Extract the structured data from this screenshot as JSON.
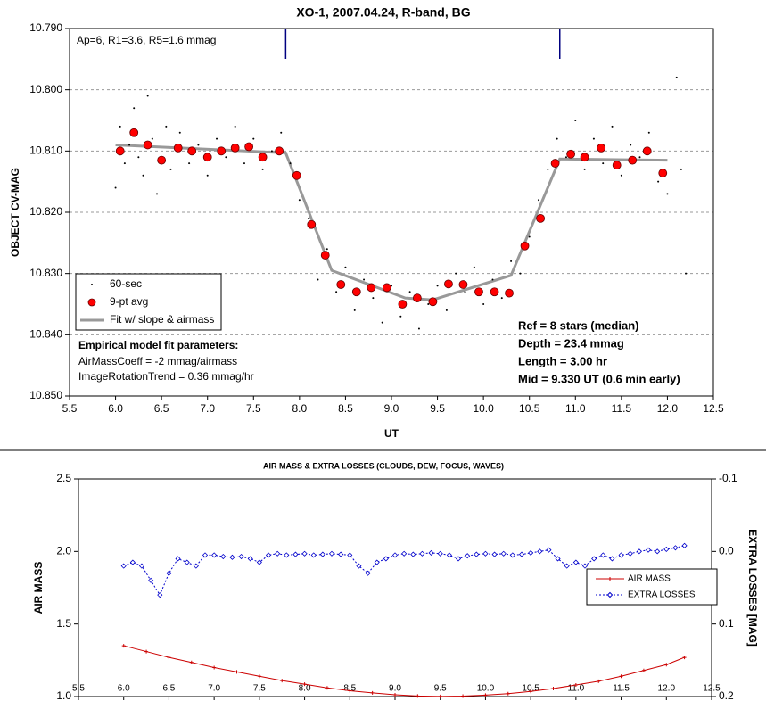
{
  "chart_data": [
    {
      "type": "scatter",
      "title": "XO-1, 2007.04.24, R-band, BG",
      "xlabel": "UT",
      "ylabel": "OBJECT CV-MAG",
      "xlim": [
        5.5,
        12.5
      ],
      "ylim": [
        10.85,
        10.79
      ],
      "y_inverted": true,
      "xticks": [
        5.5,
        {
          "value": 6,
          "label": "6.0"
        },
        6.5,
        {
          "value": 7,
          "label": "7.0"
        },
        7.5,
        {
          "value": 8,
          "label": "8.0"
        },
        8.5,
        {
          "value": 9,
          "label": "9.0"
        },
        9.5,
        {
          "value": 10,
          "label": "10.0"
        },
        10.5,
        {
          "value": 11,
          "label": "11.0"
        },
        11.5,
        {
          "value": 12,
          "label": "12.0"
        },
        12.5
      ],
      "yticks": [
        {
          "value": 10.79,
          "label": "10.790"
        },
        {
          "value": 10.8,
          "label": "10.800"
        },
        {
          "value": 10.81,
          "label": "10.810"
        },
        {
          "value": 10.82,
          "label": "10.820"
        },
        {
          "value": 10.83,
          "label": "10.830"
        },
        {
          "value": 10.84,
          "label": "10.840"
        },
        {
          "value": 10.85,
          "label": "10.850"
        }
      ],
      "grid": true,
      "legend": "lower left",
      "vlines": [
        7.85,
        10.83
      ],
      "vline_color": "#000080",
      "annotations": [
        "Ap=6, R1=3.6, R5=1.6 mmag"
      ],
      "params_title": "Empirical model fit parameters:",
      "params": [
        "AirMassCoeff = -2 mmag/airmass",
        "ImageRotationTrend = 0.36 mmag/hr"
      ],
      "results": [
        "Ref = 8 stars (median)",
        "Depth = 23.4 mmag",
        "Length = 3.00 hr",
        "Mid = 9.330 UT (0.6 min early)"
      ],
      "series": [
        {
          "name": "60-sec",
          "kind": "dot",
          "color": "#000000",
          "x": [
            6.0,
            6.05,
            6.1,
            6.15,
            6.2,
            6.25,
            6.3,
            6.35,
            6.4,
            6.45,
            6.5,
            6.55,
            6.6,
            6.7,
            6.8,
            6.9,
            7.0,
            7.1,
            7.2,
            7.3,
            7.4,
            7.5,
            7.6,
            7.7,
            7.8,
            7.9,
            8.0,
            8.1,
            8.2,
            8.3,
            8.4,
            8.5,
            8.6,
            8.7,
            8.8,
            8.9,
            9.0,
            9.1,
            9.2,
            9.3,
            9.4,
            9.5,
            9.6,
            9.7,
            9.8,
            9.9,
            10.0,
            10.1,
            10.2,
            10.3,
            10.4,
            10.5,
            10.6,
            10.7,
            10.8,
            10.9,
            11.0,
            11.1,
            11.2,
            11.3,
            11.4,
            11.5,
            11.6,
            11.7,
            11.8,
            11.9,
            12.0,
            12.1,
            12.15,
            12.2
          ],
          "values": [
            10.816,
            10.806,
            10.812,
            10.809,
            10.803,
            10.811,
            10.814,
            10.801,
            10.808,
            10.817,
            10.812,
            10.806,
            10.813,
            10.807,
            10.812,
            10.809,
            10.814,
            10.808,
            10.811,
            10.806,
            10.812,
            10.808,
            10.813,
            10.81,
            10.807,
            10.812,
            10.818,
            10.821,
            10.831,
            10.826,
            10.833,
            10.829,
            10.836,
            10.831,
            10.834,
            10.838,
            10.832,
            10.837,
            10.833,
            10.839,
            10.835,
            10.832,
            10.836,
            10.83,
            10.833,
            10.829,
            10.835,
            10.831,
            10.834,
            10.828,
            10.83,
            10.824,
            10.818,
            10.813,
            10.808,
            10.811,
            10.805,
            10.813,
            10.808,
            10.812,
            10.806,
            10.814,
            10.809,
            10.811,
            10.807,
            10.815,
            10.817,
            10.798,
            10.813,
            10.83
          ]
        },
        {
          "name": "9-pt avg",
          "kind": "circle",
          "color": "#ff0000",
          "x": [
            6.05,
            6.2,
            6.35,
            6.5,
            6.68,
            6.83,
            7.0,
            7.15,
            7.3,
            7.45,
            7.6,
            7.78,
            7.97,
            8.13,
            8.28,
            8.45,
            8.62,
            8.78,
            8.95,
            9.12,
            9.28,
            9.45,
            9.62,
            9.78,
            9.95,
            10.12,
            10.28,
            10.45,
            10.62,
            10.78,
            10.95,
            11.1,
            11.28,
            11.45,
            11.62,
            11.78,
            11.95
          ],
          "values": [
            10.81,
            10.807,
            10.809,
            10.8115,
            10.8095,
            10.81,
            10.811,
            10.81,
            10.8095,
            10.8093,
            10.811,
            10.81,
            10.814,
            10.822,
            10.827,
            10.8318,
            10.833,
            10.8323,
            10.8323,
            10.835,
            10.834,
            10.8346,
            10.8317,
            10.8318,
            10.833,
            10.833,
            10.8332,
            10.8255,
            10.821,
            10.812,
            10.8105,
            10.811,
            10.8095,
            10.8123,
            10.8115,
            10.81,
            10.8136
          ]
        },
        {
          "name": "Fit w/ slope & airmass",
          "kind": "line",
          "color": "#999999",
          "x": [
            6.0,
            7.85,
            8.35,
            9.15,
            9.45,
            10.3,
            10.83,
            12.0
          ],
          "values": [
            10.809,
            10.8103,
            10.8295,
            10.834,
            10.8343,
            10.8303,
            10.8113,
            10.8115
          ]
        }
      ]
    },
    {
      "type": "line",
      "title": "AIR MASS & EXTRA LOSSES (CLOUDS, DEW, FOCUS, WAVES)",
      "ylabel": "AIR MASS",
      "y2label": "EXTRA LOSSES [MAG]",
      "xlim": [
        5.5,
        12.5
      ],
      "ylim": [
        1.0,
        2.5
      ],
      "y2lim": [
        0.2,
        -0.1
      ],
      "y2_inverted": true,
      "xticks": [
        5.5,
        {
          "value": 6,
          "label": "6.0"
        },
        6.5,
        {
          "value": 7,
          "label": "7.0"
        },
        7.5,
        {
          "value": 8,
          "label": "8.0"
        },
        8.5,
        {
          "value": 9,
          "label": "9.0"
        },
        9.5,
        {
          "value": 10,
          "label": "10.0"
        },
        10.5,
        {
          "value": 11,
          "label": "11.0"
        },
        11.5,
        {
          "value": 12,
          "label": "12.0"
        },
        12.5
      ],
      "yticks": [
        {
          "value": 1,
          "label": "1.0"
        },
        1.5,
        {
          "value": 2,
          "label": "2.0"
        },
        2.5
      ],
      "y2ticks": [
        -0.1,
        {
          "value": 0,
          "label": "0.0"
        },
        0.1,
        0.2
      ],
      "grid": false,
      "legend": "center right",
      "series": [
        {
          "name": "AIR MASS",
          "color": "#cc0000",
          "marker": "plus",
          "x": [
            6.0,
            6.25,
            6.5,
            6.75,
            7.0,
            7.25,
            7.5,
            7.75,
            8.0,
            8.25,
            8.5,
            8.75,
            9.0,
            9.25,
            9.5,
            9.75,
            10.0,
            10.25,
            10.5,
            10.75,
            11.0,
            11.25,
            11.5,
            11.75,
            12.0,
            12.2
          ],
          "values": [
            1.35,
            1.31,
            1.27,
            1.235,
            1.2,
            1.17,
            1.14,
            1.11,
            1.085,
            1.06,
            1.04,
            1.025,
            1.012,
            1.004,
            1.001,
            1.003,
            1.01,
            1.02,
            1.035,
            1.055,
            1.08,
            1.105,
            1.14,
            1.18,
            1.22,
            1.27
          ]
        },
        {
          "name": "EXTRA LOSSES",
          "color": "#0000cc",
          "marker": "diamond",
          "axis": "y2",
          "x": [
            6.0,
            6.1,
            6.2,
            6.3,
            6.4,
            6.5,
            6.6,
            6.7,
            6.8,
            6.9,
            7.0,
            7.1,
            7.2,
            7.3,
            7.4,
            7.5,
            7.6,
            7.7,
            7.8,
            7.9,
            8.0,
            8.1,
            8.2,
            8.3,
            8.4,
            8.5,
            8.6,
            8.7,
            8.8,
            8.9,
            9.0,
            9.1,
            9.2,
            9.3,
            9.4,
            9.5,
            9.6,
            9.7,
            9.8,
            9.9,
            10.0,
            10.1,
            10.2,
            10.3,
            10.4,
            10.5,
            10.6,
            10.7,
            10.8,
            10.9,
            11.0,
            11.1,
            11.2,
            11.3,
            11.4,
            11.5,
            11.6,
            11.7,
            11.8,
            11.9,
            12.0,
            12.1,
            12.2
          ],
          "values": [
            0.02,
            0.015,
            0.02,
            0.04,
            0.06,
            0.03,
            0.01,
            0.015,
            0.02,
            0.005,
            0.005,
            0.007,
            0.008,
            0.007,
            0.01,
            0.015,
            0.005,
            0.003,
            0.005,
            0.004,
            0.003,
            0.005,
            0.004,
            0.003,
            0.004,
            0.005,
            0.02,
            0.03,
            0.015,
            0.01,
            0.005,
            0.003,
            0.004,
            0.003,
            0.002,
            0.003,
            0.005,
            0.01,
            0.006,
            0.004,
            0.003,
            0.004,
            0.003,
            0.005,
            0.004,
            0.002,
            0.0,
            -0.002,
            0.01,
            0.02,
            0.015,
            0.02,
            0.01,
            0.005,
            0.01,
            0.005,
            0.003,
            0.0,
            -0.002,
            0.0,
            -0.003,
            -0.005,
            -0.008
          ]
        }
      ]
    }
  ]
}
